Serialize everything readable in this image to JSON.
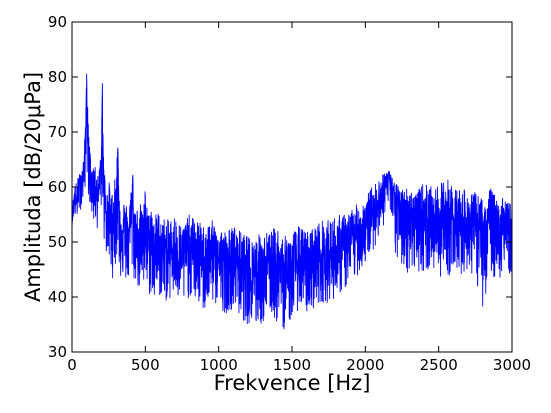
{
  "chart_data": {
    "type": "line",
    "title": "",
    "xlabel": "Frekvence [Hz]",
    "ylabel": "Amplituda [dB/20μPa]",
    "xlim": [
      0,
      3000
    ],
    "ylim": [
      30,
      90
    ],
    "x_ticks": [
      0,
      500,
      1000,
      1500,
      2000,
      2500,
      3000
    ],
    "y_ticks": [
      30,
      40,
      50,
      60,
      70,
      80,
      90
    ],
    "grid": false,
    "legend": "none",
    "series": [
      {
        "color": "#0000ff",
        "x": [
          0,
          15,
          30,
          45,
          60,
          75,
          90,
          100,
          110,
          125,
          140,
          155,
          170,
          185,
          200,
          207,
          213,
          225,
          240,
          255,
          270,
          285,
          300,
          313,
          320,
          340,
          360,
          380,
          400,
          415,
          420,
          440,
          460,
          480,
          500,
          520,
          540,
          560,
          580,
          600,
          650,
          700,
          750,
          800,
          850,
          900,
          950,
          1000,
          1050,
          1100,
          1150,
          1200,
          1250,
          1300,
          1350,
          1400,
          1450,
          1500,
          1550,
          1600,
          1650,
          1700,
          1750,
          1800,
          1850,
          1900,
          1950,
          2000,
          2040,
          2080,
          2110,
          2140,
          2160,
          2180,
          2200,
          2230,
          2260,
          2300,
          2350,
          2400,
          2450,
          2500,
          2550,
          2600,
          2650,
          2700,
          2750,
          2800,
          2850,
          2900,
          2950,
          3000
        ],
        "values": [
          54,
          58,
          57,
          60,
          61,
          62,
          67,
          80.5,
          68,
          63,
          60,
          62,
          59,
          60,
          65,
          78.5,
          64,
          58,
          55,
          56,
          53,
          54,
          58,
          67,
          55,
          52,
          53,
          51,
          54,
          61,
          52,
          51,
          53,
          50,
          55,
          49,
          52,
          48,
          51,
          49,
          48,
          49,
          47,
          49,
          48,
          47,
          48,
          47,
          46,
          47,
          45,
          44,
          45,
          44,
          45,
          46,
          44,
          45,
          46,
          45,
          46,
          47,
          47,
          48,
          49,
          50,
          52,
          53,
          55,
          57,
          59,
          61,
          62.5,
          60,
          58,
          56,
          55,
          55,
          54,
          55,
          54,
          53,
          55,
          54,
          54,
          53,
          53,
          52,
          54,
          53,
          53,
          52
        ],
        "min_envelope": [
          53,
          55,
          54,
          55,
          56,
          57,
          60,
          62,
          59,
          56,
          54,
          53,
          52,
          55,
          56,
          58,
          52,
          48,
          47,
          46,
          43,
          44,
          46,
          48,
          44,
          43,
          43,
          42,
          43,
          44,
          43,
          42,
          41,
          40,
          41,
          40,
          40,
          39,
          40,
          40,
          39,
          40,
          38,
          40,
          39,
          37,
          39,
          38,
          37,
          38,
          36,
          35,
          34,
          35,
          37,
          35,
          34,
          36,
          38,
          37,
          38,
          39,
          39,
          40,
          41,
          42,
          44,
          46,
          48,
          50,
          52,
          54,
          56,
          53,
          47,
          46,
          45,
          44,
          45,
          44,
          45,
          44,
          43,
          45,
          44,
          45,
          43,
          38,
          44,
          43,
          44,
          44
        ],
        "max_envelope": [
          56,
          60,
          61,
          62,
          63,
          64,
          70,
          81,
          72,
          66,
          63,
          64,
          62,
          63,
          68,
          79,
          67,
          62,
          60,
          61,
          59,
          60,
          63,
          68,
          60,
          57,
          58,
          56,
          59,
          63,
          57,
          56,
          58,
          55,
          60,
          55,
          57,
          54,
          56,
          55,
          54,
          55,
          53,
          55,
          54,
          53,
          54,
          53,
          52,
          53,
          52,
          51,
          51,
          52,
          52,
          53,
          51,
          52,
          53,
          52,
          53,
          54,
          54,
          55,
          55,
          56,
          57,
          58,
          60,
          61,
          62,
          63,
          63,
          62,
          61,
          60,
          60,
          60,
          59,
          61,
          60,
          60,
          62,
          60,
          60,
          59,
          59,
          58,
          60,
          58,
          58,
          57
        ]
      }
    ]
  }
}
